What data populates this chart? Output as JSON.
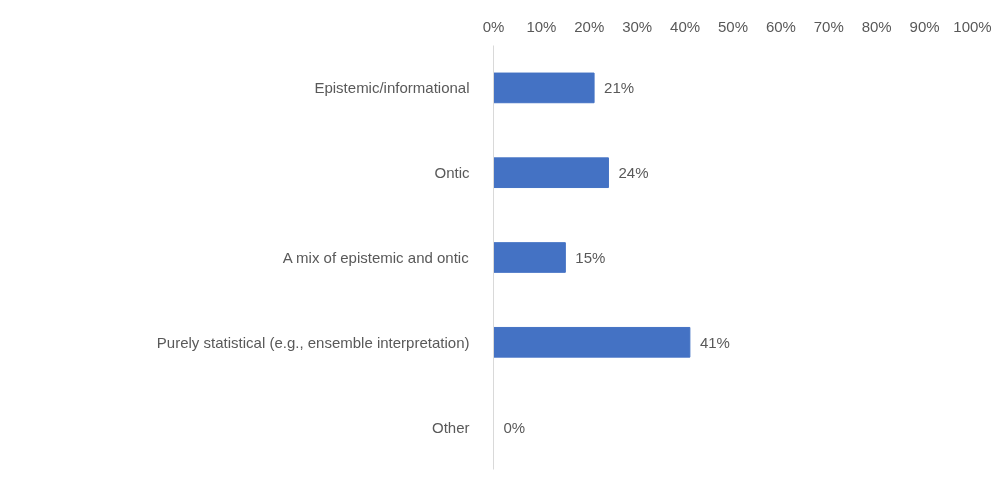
{
  "chart_data": {
    "type": "bar",
    "orientation": "horizontal",
    "categories": [
      "Epistemic/informational",
      "Ontic",
      "A mix of epistemic and ontic",
      "Purely statistical (e.g., ensemble interpretation)",
      "Other"
    ],
    "values": [
      21,
      24,
      15,
      41,
      0
    ],
    "value_labels": [
      "21%",
      "24%",
      "15%",
      "41%",
      "0%"
    ],
    "color": "#4472c4",
    "xlim": [
      0,
      100
    ],
    "xticks": [
      {
        "value": 0,
        "label": "0%"
      },
      {
        "value": 10,
        "label": "10%"
      },
      {
        "value": 20,
        "label": "20%"
      },
      {
        "value": 30,
        "label": "30%"
      },
      {
        "value": 40,
        "label": "40%"
      },
      {
        "value": 50,
        "label": "50%"
      },
      {
        "value": 60,
        "label": "60%"
      },
      {
        "value": 70,
        "label": "70%"
      },
      {
        "value": 80,
        "label": "80%"
      },
      {
        "value": 90,
        "label": "90%"
      },
      {
        "value": 100,
        "label": "100%"
      }
    ],
    "grid": false
  }
}
